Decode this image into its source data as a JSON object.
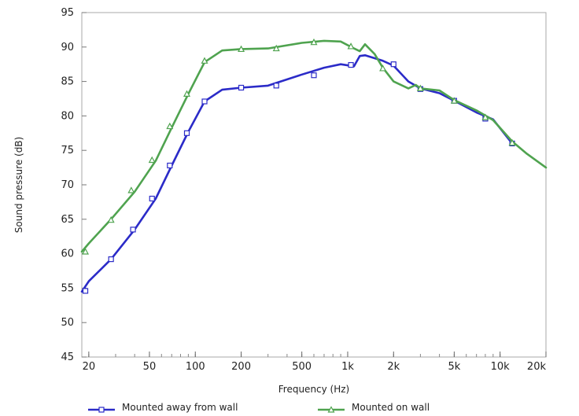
{
  "chart_data": {
    "type": "line",
    "xlabel": "Frequency  (Hz)",
    "ylabel": "Sound pressure  (dB)",
    "xscale": "log",
    "xlim": [
      18,
      20000
    ],
    "ylim": [
      45,
      95
    ],
    "grid": false,
    "legend_position": "bottom",
    "x_tick_values": [
      20,
      50,
      100,
      200,
      500,
      1000,
      2000,
      5000,
      10000,
      20000
    ],
    "x_tick_labels": [
      "20",
      "50",
      "100",
      "200",
      "500",
      "1k",
      "2k",
      "5k",
      "10k",
      "20k"
    ],
    "y_tick_values": [
      45,
      50,
      55,
      60,
      65,
      70,
      75,
      80,
      85,
      90,
      95
    ],
    "y_tick_labels": [
      "45",
      "50",
      "55",
      "60",
      "65",
      "70",
      "75",
      "80",
      "85",
      "90",
      "95"
    ],
    "series": [
      {
        "name": "Mounted away from wall",
        "color": "#2b2bc8",
        "marker": "square",
        "x": [
          18,
          20,
          28,
          40,
          55,
          70,
          90,
          115,
          150,
          200,
          300,
          500,
          700,
          900,
          1100,
          1200,
          1300,
          1700,
          2000,
          2500,
          3000,
          4000,
          5000,
          7000,
          9000,
          12000
        ],
        "y": [
          54.5,
          56.0,
          59.2,
          63.5,
          68.0,
          72.8,
          77.7,
          82.1,
          83.8,
          84.1,
          84.4,
          86.0,
          87.0,
          87.5,
          87.2,
          88.7,
          88.8,
          88.0,
          87.3,
          85.0,
          84.0,
          83.3,
          82.2,
          80.5,
          79.5,
          76.0
        ],
        "markers_x": [
          19,
          28,
          39,
          52,
          68,
          88,
          115,
          200,
          340,
          600,
          1050,
          2000,
          3000,
          5000,
          8000,
          12000
        ],
        "markers_y": [
          54.6,
          59.2,
          63.5,
          68.0,
          72.8,
          77.5,
          82.1,
          84.1,
          84.4,
          85.9,
          87.4,
          87.5,
          83.9,
          82.2,
          79.6,
          76.0
        ]
      },
      {
        "name": "Mounted on wall",
        "color": "#4fa34f",
        "marker": "triangle",
        "x": [
          18,
          20,
          28,
          40,
          55,
          70,
          90,
          115,
          150,
          200,
          300,
          500,
          700,
          900,
          1100,
          1200,
          1300,
          1500,
          1700,
          2000,
          2500,
          2800,
          3000,
          4000,
          5000,
          7000,
          9000,
          12000,
          15000,
          20000
        ],
        "y": [
          60.3,
          61.5,
          65.0,
          69.0,
          73.5,
          78.3,
          83.2,
          87.8,
          89.5,
          89.7,
          89.8,
          90.6,
          90.9,
          90.8,
          89.8,
          89.4,
          90.4,
          89.0,
          87.0,
          85.0,
          84.0,
          84.5,
          84.0,
          83.7,
          82.3,
          80.8,
          79.4,
          76.3,
          74.5,
          72.5
        ],
        "markers_x": [
          19,
          28,
          38,
          52,
          68,
          88,
          115,
          200,
          340,
          600,
          1050,
          1700,
          3000,
          5000,
          8000,
          12000
        ],
        "markers_y": [
          60.3,
          64.9,
          69.2,
          73.6,
          78.5,
          83.2,
          88.0,
          89.7,
          89.8,
          90.7,
          90.1,
          86.9,
          84.0,
          82.2,
          79.8,
          76.1
        ]
      }
    ]
  }
}
